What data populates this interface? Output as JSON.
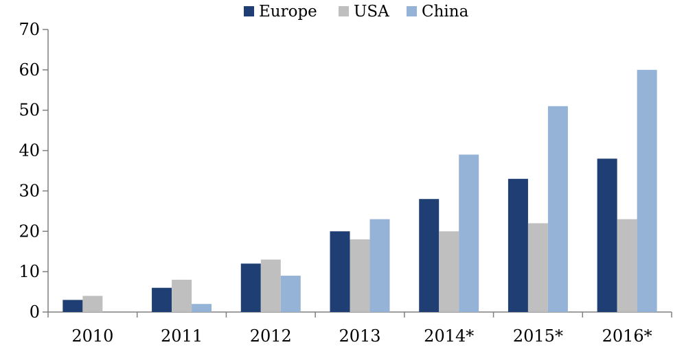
{
  "chart_data": {
    "type": "bar",
    "title": "",
    "xlabel": "",
    "ylabel": "",
    "categories": [
      "2010",
      "2011",
      "2012",
      "2013",
      "2014*",
      "2015*",
      "2016*"
    ],
    "series": [
      {
        "name": "Europe",
        "color": "#1f3e74",
        "values": [
          3,
          6,
          12,
          20,
          28,
          33,
          38
        ]
      },
      {
        "name": "USA",
        "color": "#bfbfbf",
        "values": [
          4,
          8,
          13,
          18,
          20,
          22,
          23
        ]
      },
      {
        "name": "China",
        "color": "#95b3d7",
        "values": [
          0,
          2,
          9,
          23,
          39,
          51,
          60
        ]
      }
    ],
    "ylim": [
      0,
      70
    ],
    "yticks": [
      "0",
      "10",
      "20",
      "30",
      "40",
      "50",
      "60",
      "70"
    ],
    "grid": false,
    "legend_position": "top-center"
  }
}
